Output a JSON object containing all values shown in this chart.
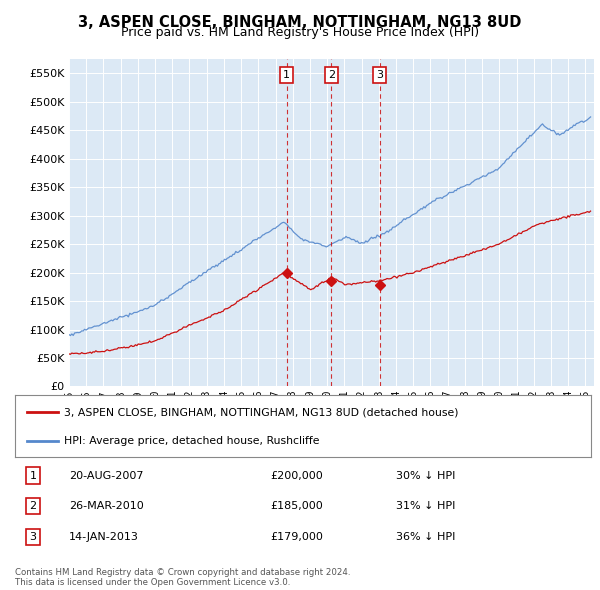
{
  "title": "3, ASPEN CLOSE, BINGHAM, NOTTINGHAM, NG13 8UD",
  "subtitle": "Price paid vs. HM Land Registry's House Price Index (HPI)",
  "title_fontsize": 10.5,
  "subtitle_fontsize": 9,
  "ylim": [
    0,
    575000
  ],
  "yticks": [
    0,
    50000,
    100000,
    150000,
    200000,
    250000,
    300000,
    350000,
    400000,
    450000,
    500000,
    550000
  ],
  "background_color": "#ffffff",
  "plot_bg_color": "#dce9f5",
  "grid_color": "#ffffff",
  "hpi_color": "#5588cc",
  "price_color": "#cc1111",
  "transactions": [
    {
      "date": 2007.64,
      "price": 200000,
      "label": "1"
    },
    {
      "date": 2010.24,
      "price": 185000,
      "label": "2"
    },
    {
      "date": 2013.04,
      "price": 179000,
      "label": "3"
    }
  ],
  "table_rows": [
    {
      "num": "1",
      "date": "20-AUG-2007",
      "price": "£200,000",
      "pct": "30% ↓ HPI"
    },
    {
      "num": "2",
      "date": "26-MAR-2010",
      "price": "£185,000",
      "pct": "31% ↓ HPI"
    },
    {
      "num": "3",
      "date": "14-JAN-2013",
      "price": "£179,000",
      "pct": "36% ↓ HPI"
    }
  ],
  "legend_entries": [
    "3, ASPEN CLOSE, BINGHAM, NOTTINGHAM, NG13 8UD (detached house)",
    "HPI: Average price, detached house, Rushcliffe"
  ],
  "footnote": "Contains HM Land Registry data © Crown copyright and database right 2024.\nThis data is licensed under the Open Government Licence v3.0.",
  "xmin": 1995.0,
  "xmax": 2025.5
}
